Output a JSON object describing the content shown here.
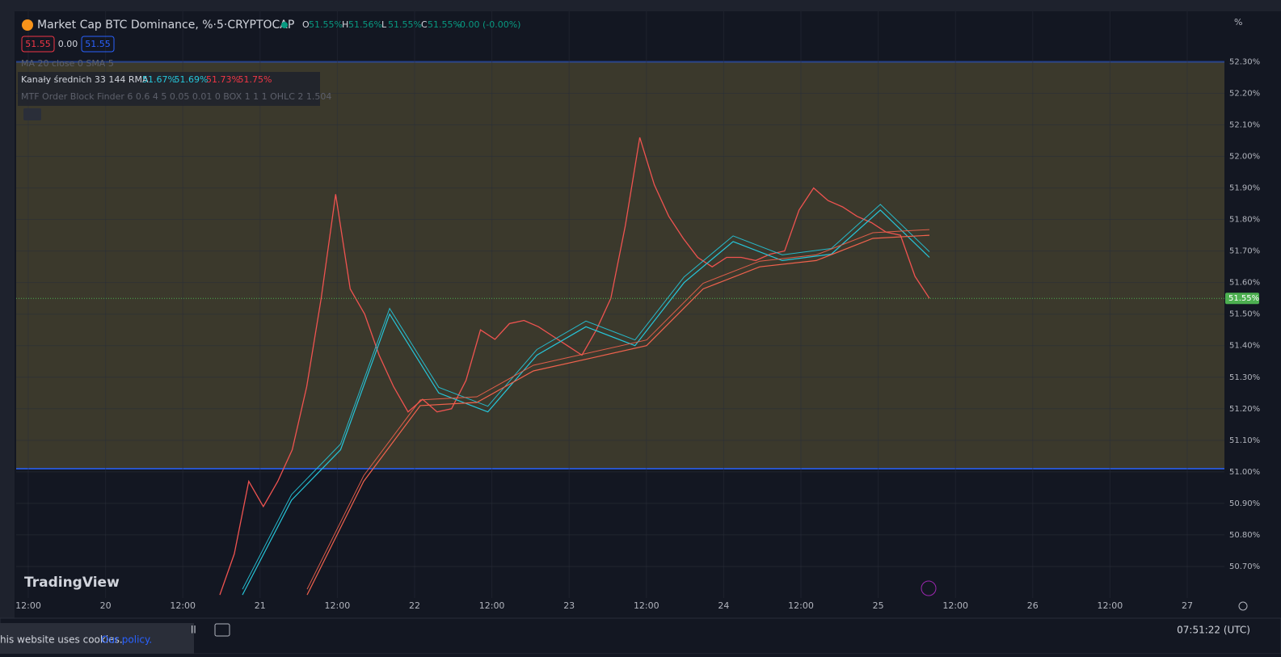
{
  "header": {
    "symbol": "Market Cap BTC Dominance, %·5·CRYPTOCAP",
    "ohlc": [
      "O",
      "51.55%",
      "H",
      "51.56%",
      "L",
      "51.55%",
      "C",
      "51.55%"
    ],
    "change": "-0.00 (-0.00%)",
    "buttons": [
      "51.55",
      "0.00",
      "51.55"
    ]
  },
  "indicators": {
    "ma": "MA 20 close 0 SMA 5",
    "channels": "Kanały średnich 33 144 RMA",
    "channel_values": [
      "51.67%",
      "51.69%",
      "51.73%",
      "51.75%"
    ],
    "mtf": "MTF Order Block Finder 6 0.6 4 5 0.05 0.01 0 BOX 1 1 1 OHLC 2 1.504"
  },
  "axis_unit": "%",
  "x_axis_labels": [
    "12:00",
    "20",
    "12:00",
    "21",
    "12:00",
    "22",
    "12:00",
    "23",
    "12:00",
    "24",
    "12:00",
    "25",
    "12:00",
    "26",
    "12:00",
    "27"
  ],
  "logo": "TradingView",
  "footer": {
    "cookies": "his website uses cookies.",
    "policy": "Our policy.",
    "tab": "ll",
    "clock": "07:51:22 (UTC)"
  },
  "chart_data": {
    "type": "line",
    "ylim": [
      50.6,
      52.46
    ],
    "yticks": [
      {
        "value": 50.7,
        "label": "50.70%"
      },
      {
        "value": 50.8,
        "label": "50.80%"
      },
      {
        "value": 50.9,
        "label": "50.90%"
      },
      {
        "value": 51.0,
        "label": "51.00%"
      },
      {
        "value": 51.1,
        "label": "51.10%"
      },
      {
        "value": 51.2,
        "label": "51.20%"
      },
      {
        "value": 51.3,
        "label": "51.30%"
      },
      {
        "value": 51.4,
        "label": "51.40%"
      },
      {
        "value": 51.5,
        "label": "51.50%"
      },
      {
        "value": 51.6,
        "label": "51.60%"
      },
      {
        "value": 51.7,
        "label": "51.70%"
      },
      {
        "value": 51.8,
        "label": "51.80%"
      },
      {
        "value": 51.9,
        "label": "51.90%"
      },
      {
        "value": 52.0,
        "label": "52.00%"
      },
      {
        "value": 52.1,
        "label": "52.10%"
      },
      {
        "value": 52.2,
        "label": "52.20%"
      },
      {
        "value": 52.3,
        "label": "52.30%"
      }
    ],
    "order_block": {
      "values": [
        51.01,
        52.3
      ],
      "color": "#4a4630"
    },
    "last_price": {
      "value": 51.55,
      "label": "51.55%",
      "color": "#4caf50"
    },
    "series": [
      {
        "color": "#ef5350",
        "values": [
          50.61,
          50.74,
          50.97,
          50.89,
          50.97,
          51.07,
          51.27,
          51.55,
          51.88,
          51.58,
          51.5,
          51.37,
          51.27,
          51.19,
          51.23,
          51.19,
          51.2,
          51.29,
          51.45,
          51.42,
          51.47,
          51.48,
          51.46,
          51.43,
          51.4,
          51.37,
          51.45,
          51.55,
          51.78,
          52.06,
          51.91,
          51.81,
          51.74,
          51.68,
          51.65,
          51.68,
          51.68,
          51.67,
          51.69,
          51.7,
          51.83,
          51.9,
          51.86,
          51.84,
          51.81,
          51.79,
          51.76,
          51.75,
          51.62,
          51.55
        ]
      },
      {
        "color": "#26c6da",
        "values": [
          50.61,
          50.91,
          51.07,
          51.5,
          51.25,
          51.19,
          51.37,
          51.46,
          51.4,
          51.6,
          51.73,
          51.67,
          51.69,
          51.83,
          51.68
        ]
      },
      {
        "color": "#f0624d",
        "values": [
          50.61,
          50.97,
          51.21,
          51.22,
          51.32,
          51.36,
          51.4,
          51.58,
          51.65,
          51.67,
          51.74,
          51.75
        ]
      }
    ]
  }
}
